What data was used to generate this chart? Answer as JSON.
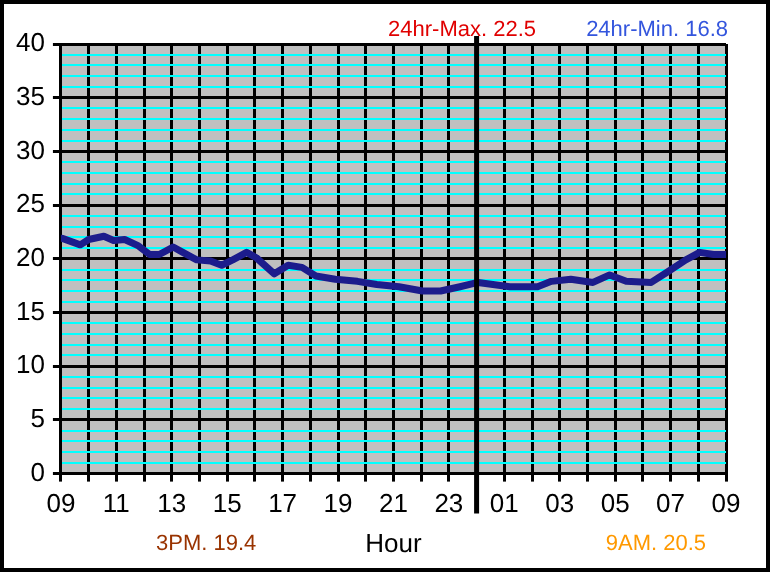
{
  "chart_data": {
    "type": "line",
    "xlabel": "Hour",
    "annotations": [
      "24hr-Max. 22.5",
      "24hr-Min. 16.8",
      "3PM. 19.4",
      "9AM. 20.5"
    ],
    "xlim": [
      "--01-01T09:00",
      "--01-02T09:00"
    ],
    "xticks": [
      {
        "value": "--01-01T09:00",
        "label": "09"
      },
      {
        "value": "--01-01T10:00",
        "label": null
      },
      {
        "value": "--01-01T11:00",
        "label": "11"
      },
      {
        "value": "--01-01T12:00",
        "label": null
      },
      {
        "value": "--01-01T13:00",
        "label": "13"
      },
      {
        "value": "--01-01T14:00",
        "label": null
      },
      {
        "value": "--01-01T15:00",
        "label": "15"
      },
      {
        "value": "--01-01T16:00",
        "label": null
      },
      {
        "value": "--01-01T17:00",
        "label": "17"
      },
      {
        "value": "--01-01T18:00",
        "label": null
      },
      {
        "value": "--01-01T19:00",
        "label": "19"
      },
      {
        "value": "--01-01T20:00",
        "label": null
      },
      {
        "value": "--01-01T21:00",
        "label": "21"
      },
      {
        "value": "--01-01T22:00",
        "label": null
      },
      {
        "value": "--01-01T23:00",
        "label": "23"
      },
      {
        "value": "--01-02T00:00",
        "label": null
      },
      {
        "value": "--01-02T01:00",
        "label": "01"
      },
      {
        "value": "--01-02T02:00",
        "label": null
      },
      {
        "value": "--01-02T03:00",
        "label": "03"
      },
      {
        "value": "--01-02T04:00",
        "label": null
      },
      {
        "value": "--01-02T05:00",
        "label": "05"
      },
      {
        "value": "--01-02T06:00",
        "label": null
      },
      {
        "value": "--01-02T07:00",
        "label": "07"
      },
      {
        "value": "--01-02T08:00",
        "label": null
      },
      {
        "value": "--01-02T09:00",
        "label": "09"
      }
    ],
    "ylim": [
      0,
      40
    ],
    "yticks": [
      0,
      {
        "value": 1,
        "label": null
      },
      {
        "value": 2,
        "label": null
      },
      {
        "value": 3,
        "label": null
      },
      {
        "value": 4,
        "label": null
      },
      5,
      {
        "value": 6,
        "label": null
      },
      {
        "value": 7,
        "label": null
      },
      {
        "value": 8,
        "label": null
      },
      {
        "value": 9,
        "label": null
      },
      10,
      {
        "value": 11,
        "label": null
      },
      {
        "value": 12,
        "label": null
      },
      {
        "value": 13,
        "label": null
      },
      {
        "value": 14,
        "label": null
      },
      15,
      {
        "value": 16,
        "label": null
      },
      {
        "value": 17,
        "label": null
      },
      {
        "value": 18,
        "label": null
      },
      {
        "value": 19,
        "label": null
      },
      20,
      {
        "value": 21,
        "label": null
      },
      {
        "value": 22,
        "label": null
      },
      {
        "value": 23,
        "label": null
      },
      {
        "value": 24,
        "label": null
      },
      25,
      {
        "value": 26,
        "label": null
      },
      {
        "value": 27,
        "label": null
      },
      {
        "value": 28,
        "label": null
      },
      {
        "value": 29,
        "label": null
      },
      30,
      {
        "value": 31,
        "label": null
      },
      {
        "value": 32,
        "label": null
      },
      {
        "value": 33,
        "label": null
      },
      {
        "value": 34,
        "label": null
      },
      35,
      {
        "value": 36,
        "label": null
      },
      {
        "value": 37,
        "label": null
      },
      {
        "value": 38,
        "label": null
      },
      {
        "value": 39,
        "label": null
      },
      40
    ],
    "grid": true,
    "marker": "none",
    "line_style": "solid",
    "ref_lines": [
      {
        "axis": "x",
        "value": "--01-02T00:00",
        "color": "#000000"
      }
    ],
    "x": [
      "--01-01T09:03",
      "--01-01T09:42",
      "--01-01T10:00",
      "--01-01T10:33",
      "--01-01T10:54",
      "--01-01T11:18",
      "--01-01T11:48",
      "--01-01T12:12",
      "--01-01T12:33",
      "--01-01T13:03",
      "--01-01T13:24",
      "--01-01T13:54",
      "--01-01T14:24",
      "--01-01T14:48",
      "--01-01T15:12",
      "--01-01T15:42",
      "--01-01T16:03",
      "--01-01T16:42",
      "--01-01T17:12",
      "--01-01T17:42",
      "--01-01T18:12",
      "--01-01T18:54",
      "--01-01T19:42",
      "--01-01T20:24",
      "--01-01T21:12",
      "--01-01T22:03",
      "--01-01T22:42",
      "--01-01T23:24",
      "--01-02T00:03",
      "--01-02T01:12",
      "--01-02T02:12",
      "--01-02T02:42",
      "--01-02T03:24",
      "--01-02T04:12",
      "--01-02T04:48",
      "--01-02T05:24",
      "--01-02T06:18",
      "--01-02T06:54",
      "--01-02T07:33",
      "--01-02T08:03",
      "--01-02T08:33",
      "--01-02T09:00"
    ],
    "series": [
      {
        "color": "#1c1c8c",
        "values": [
          21.9,
          21.3,
          21.8,
          22.1,
          21.7,
          21.8,
          21.2,
          20.4,
          20.4,
          21.1,
          20.6,
          19.9,
          19.8,
          19.4,
          19.9,
          20.6,
          20.1,
          18.6,
          19.4,
          19.2,
          18.4,
          18.1,
          17.9,
          17.6,
          17.4,
          17.0,
          17.0,
          17.4,
          17.8,
          17.4,
          17.4,
          17.9,
          18.1,
          17.8,
          18.5,
          17.9,
          17.8,
          18.8,
          19.9,
          20.6,
          20.4,
          20.4
        ]
      }
    ]
  }
}
